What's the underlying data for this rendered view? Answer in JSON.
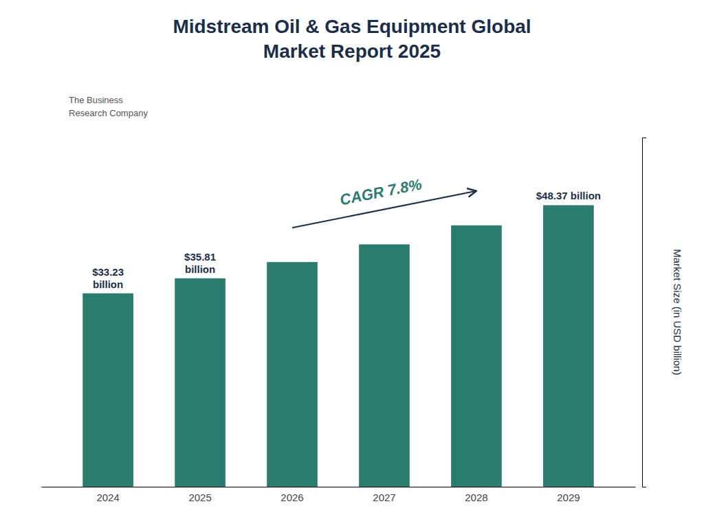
{
  "chart_data": {
    "type": "bar",
    "title": "Midstream Oil & Gas Equipment Global\nMarket Report 2025",
    "categories": [
      "2024",
      "2025",
      "2026",
      "2027",
      "2028",
      "2029"
    ],
    "values": [
      33.23,
      35.81,
      38.6,
      41.64,
      44.91,
      48.37
    ],
    "value_labels": [
      "$33.23\nbillion",
      "$35.81\nbillion",
      null,
      null,
      null,
      "$48.37 billion"
    ],
    "color": "#2a7d6e",
    "ylabel": "Market Size (in USD billion)",
    "ylim": [
      0,
      60
    ],
    "tick_labels": "x",
    "grid": false,
    "annotations": [
      {
        "text": "CAGR 7.8%"
      },
      {
        "text": "The Business\nResearch Company"
      }
    ]
  }
}
